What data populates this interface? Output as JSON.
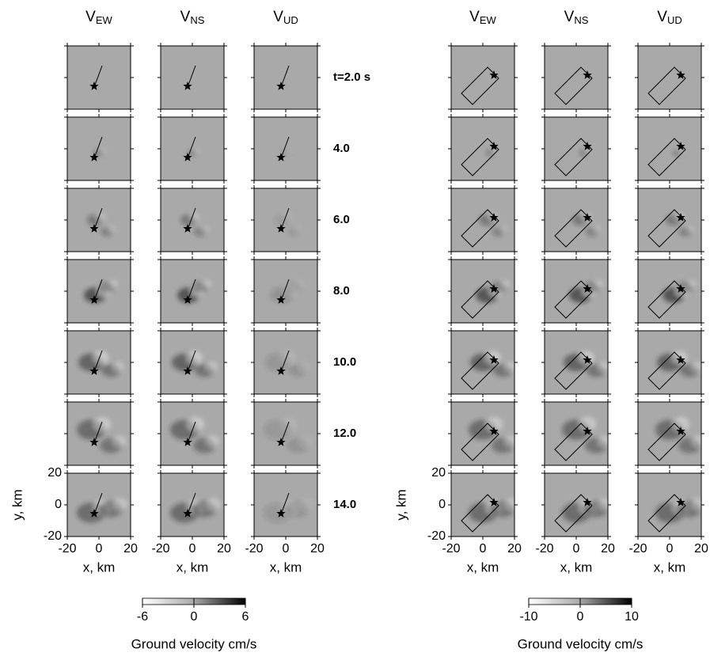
{
  "left": {
    "columns": [
      {
        "main": "V",
        "sub": "EW"
      },
      {
        "main": "V",
        "sub": "NS"
      },
      {
        "main": "V",
        "sub": "UD"
      }
    ],
    "times": [
      "t=2.0 s",
      "4.0",
      "6.0",
      "8.0",
      "10.0",
      "12.0",
      "14.0"
    ],
    "colorbar": {
      "range": [
        -6,
        6
      ],
      "ticks": [
        -6,
        0,
        6
      ],
      "label": "Ground velocity cm/s"
    }
  },
  "right": {
    "columns": [
      {
        "main": "V",
        "sub": "EW"
      },
      {
        "main": "V",
        "sub": "NS"
      },
      {
        "main": "V",
        "sub": "UD"
      }
    ],
    "colorbar": {
      "range": [
        -10,
        10
      ],
      "ticks": [
        -10,
        0,
        10
      ],
      "label": "Ground velocity cm/s"
    }
  },
  "axes": {
    "xlim": [
      -20,
      20
    ],
    "ylim": [
      -20,
      20
    ],
    "xticks": [
      -20,
      0,
      20
    ],
    "yticks": [
      20,
      0,
      -20
    ],
    "x_label": "x, km",
    "y_label": "y, km"
  }
}
